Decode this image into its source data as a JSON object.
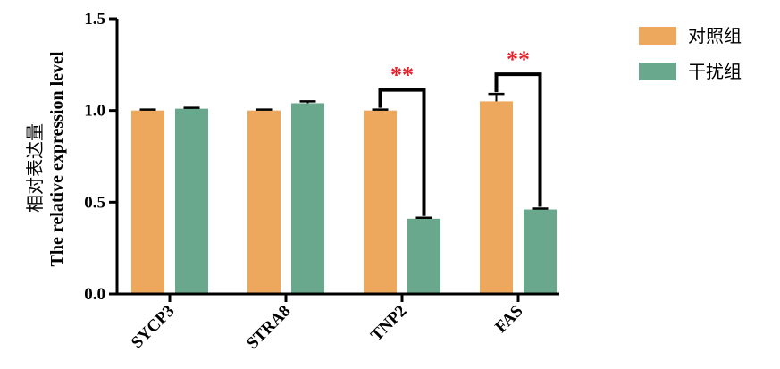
{
  "chart_data": {
    "type": "bar",
    "categories": [
      "SYCP3",
      "STRA8",
      "TNP2",
      "FAS"
    ],
    "series": [
      {
        "name": "对照组",
        "values": [
          1.0,
          1.0,
          1.0,
          1.05
        ],
        "errors": [
          0.005,
          0.005,
          0.005,
          0.04
        ]
      },
      {
        "name": "干扰组",
        "values": [
          1.01,
          1.04,
          0.41,
          0.46
        ],
        "errors": [
          0.005,
          0.01,
          0.005,
          0.005
        ]
      }
    ],
    "ylabel_cn": "相对表达量",
    "ylabel_en": "The relative expression level",
    "ylim": [
      0,
      1.5
    ],
    "yticks": [
      "0.0",
      "0.5",
      "1.0",
      "1.5"
    ],
    "significance": [
      {
        "category": "TNP2",
        "label": "**"
      },
      {
        "category": "FAS",
        "label": "**"
      }
    ],
    "legend_position": "top-right",
    "colors": {
      "control": "#EDA85E",
      "treatment": "#6AA88D",
      "significance": "#E8202A",
      "axis": "#000000"
    }
  }
}
